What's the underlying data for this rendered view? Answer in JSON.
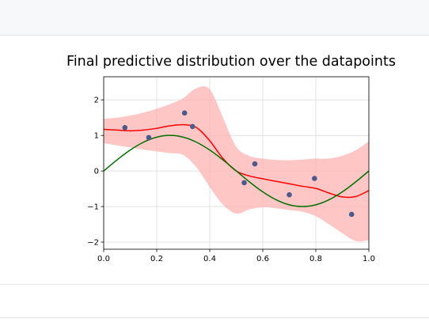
{
  "chart_data": {
    "type": "scatter",
    "title": "Final predictive distribution over the datapoints",
    "xlabel": "",
    "ylabel": "",
    "xlim": [
      0.0,
      1.0
    ],
    "ylim": [
      -2.2,
      2.65
    ],
    "xticks": [
      "0.0",
      "0.2",
      "0.4",
      "0.6",
      "0.8",
      "1.0"
    ],
    "yticks": [
      "2",
      "1",
      "0",
      "−1",
      "−2"
    ],
    "grid": true,
    "legend": "none",
    "colors": {
      "points": "#4a5a8a",
      "predictive_mean": "#ff0000",
      "true_function": "#007000",
      "band": "#ffb3b3"
    },
    "points": {
      "x": [
        0.08,
        0.17,
        0.305,
        0.335,
        0.53,
        0.57,
        0.7,
        0.795,
        0.935
      ],
      "y": [
        1.22,
        0.94,
        1.63,
        1.25,
        -0.33,
        0.2,
        -0.67,
        -0.21,
        -1.22
      ]
    },
    "predictive_mean": {
      "x": [
        0.0,
        0.05,
        0.1,
        0.15,
        0.2,
        0.25,
        0.3,
        0.35,
        0.4,
        0.45,
        0.5,
        0.55,
        0.6,
        0.65,
        0.7,
        0.75,
        0.8,
        0.85,
        0.9,
        0.95,
        1.0
      ],
      "y": [
        1.17,
        1.15,
        1.13,
        1.15,
        1.2,
        1.27,
        1.3,
        1.22,
        0.85,
        0.35,
        0.0,
        -0.14,
        -0.22,
        -0.29,
        -0.36,
        -0.43,
        -0.49,
        -0.62,
        -0.73,
        -0.72,
        -0.55
      ]
    },
    "true_function": {
      "x": [
        0.0,
        0.05,
        0.1,
        0.15,
        0.2,
        0.25,
        0.3,
        0.35,
        0.4,
        0.45,
        0.5,
        0.55,
        0.6,
        0.65,
        0.7,
        0.75,
        0.8,
        0.85,
        0.9,
        0.95,
        1.0
      ],
      "y": [
        0.0,
        0.309,
        0.588,
        0.809,
        0.951,
        1.0,
        0.951,
        0.809,
        0.588,
        0.309,
        0.0,
        -0.309,
        -0.588,
        -0.809,
        -0.951,
        -1.0,
        -0.951,
        -0.809,
        -0.588,
        -0.309,
        0.0
      ]
    },
    "band": {
      "x": [
        0.0,
        0.05,
        0.1,
        0.15,
        0.2,
        0.25,
        0.3,
        0.35,
        0.4,
        0.45,
        0.5,
        0.55,
        0.6,
        0.65,
        0.7,
        0.75,
        0.8,
        0.85,
        0.9,
        0.95,
        1.0
      ],
      "upper": [
        1.47,
        1.5,
        1.56,
        1.64,
        1.75,
        1.88,
        2.05,
        2.33,
        2.3,
        1.5,
        0.68,
        0.42,
        0.35,
        0.31,
        0.3,
        0.32,
        0.35,
        0.35,
        0.43,
        0.58,
        0.84
      ],
      "lower": [
        0.78,
        0.72,
        0.66,
        0.6,
        0.55,
        0.5,
        0.45,
        0.1,
        -0.45,
        -0.95,
        -1.2,
        -1.08,
        -1.02,
        -1.05,
        -1.1,
        -1.15,
        -1.27,
        -1.5,
        -1.75,
        -1.97,
        -1.95
      ]
    }
  }
}
